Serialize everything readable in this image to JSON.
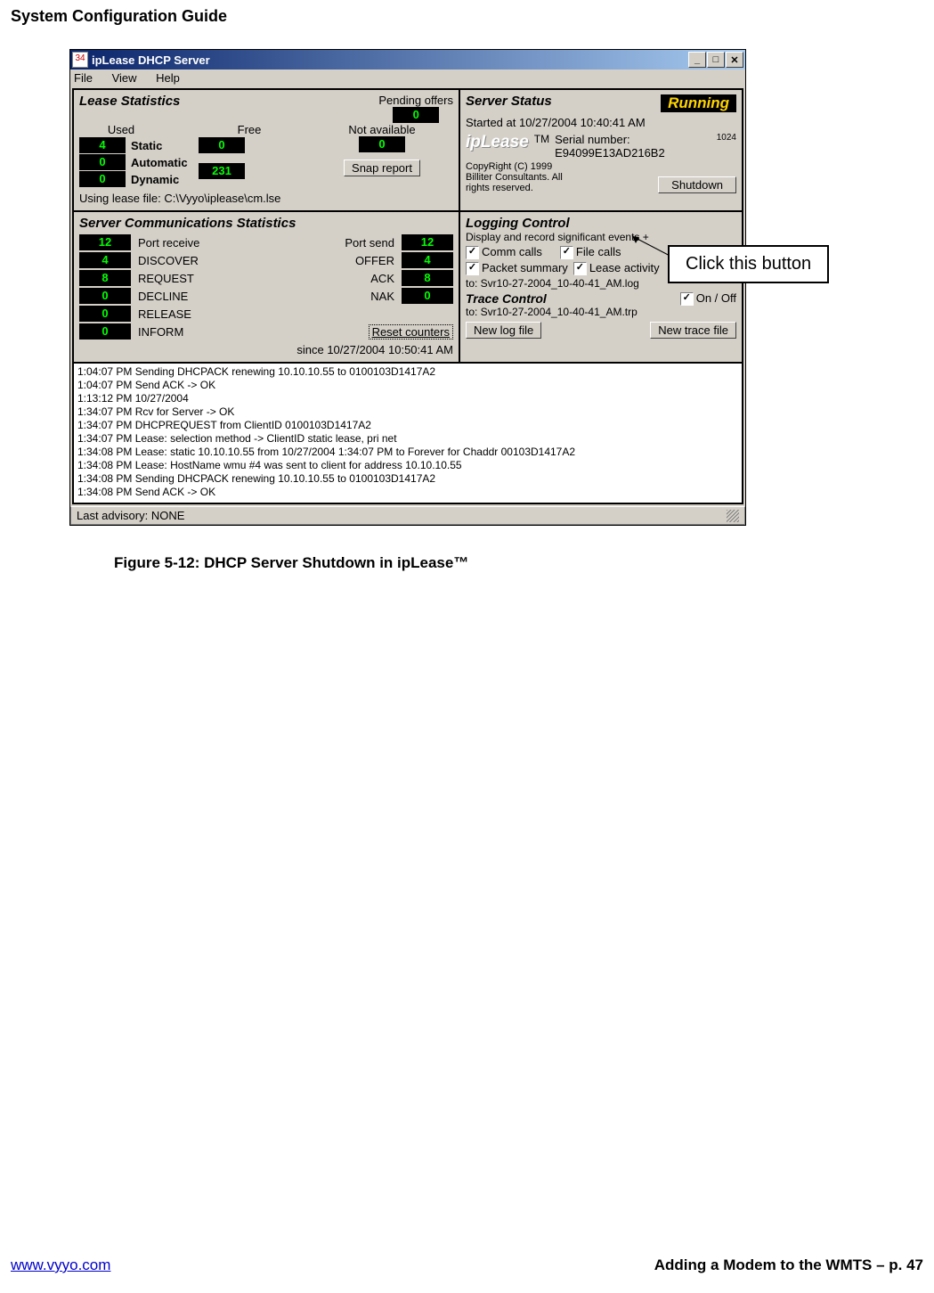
{
  "page": {
    "header": "System Configuration Guide",
    "figure_caption": "Figure 5-12: DHCP Server Shutdown in ipLease™",
    "callout": "Click this button",
    "footer_link": "www.vyyo.com",
    "footer_right": "Adding a Modem to the WMTS – p. 47"
  },
  "window": {
    "title": "ipLease DHCP Server",
    "menu": {
      "file": "File",
      "view": "View",
      "help": "Help"
    }
  },
  "lease_stats": {
    "title": "Lease Statistics",
    "used_label": "Used",
    "free_label": "Free",
    "static_label": "Static",
    "automatic_label": "Automatic",
    "dynamic_label": "Dynamic",
    "pending_label": "Pending offers",
    "not_avail_label": "Not available",
    "snap_report_btn": "Snap report",
    "static_used": "4",
    "static_free": "0",
    "automatic_used": "0",
    "automatic_free": "231",
    "dynamic_used": "0",
    "pending_val": "0",
    "not_avail_val": "0",
    "lease_file_line": "Using lease file: C:\\Vyyo\\iplease\\cm.lse"
  },
  "server_status": {
    "title": "Server Status",
    "running": "Running",
    "started_line": "Started at 10/27/2004 10:40:41 AM",
    "logo": "ipLease",
    "tm": "TM",
    "serial_label": "Serial number:",
    "serial_small": "1024",
    "serial_val": "E94099E13AD216B2",
    "copyright": "CopyRight (C) 1999\nBilliter Consultants. All\nrights reserved.",
    "shutdown_btn": "Shutdown"
  },
  "comm_stats": {
    "title": "Server Communications Statistics",
    "port_receive_label": "Port receive",
    "port_send_label": "Port send",
    "discover_label": "DISCOVER",
    "offer_label": "OFFER",
    "request_label": "REQUEST",
    "ack_label": "ACK",
    "decline_label": "DECLINE",
    "nak_label": "NAK",
    "release_label": "RELEASE",
    "inform_label": "INFORM",
    "port_receive_val": "12",
    "port_send_val": "12",
    "discover_val": "4",
    "offer_val": "4",
    "request_val": "8",
    "ack_val": "8",
    "decline_val": "0",
    "nak_val": "0",
    "release_val": "0",
    "inform_val": "0",
    "reset_btn": "Reset counters",
    "since_line": "since 10/27/2004 10:50:41 AM"
  },
  "logging": {
    "title": "Logging Control",
    "subtitle": "Display and record significant events +",
    "comm_calls": "Comm calls",
    "file_calls": "File calls",
    "packet_summary": "Packet summary",
    "lease_activity": "Lease activity",
    "log_to_line": "to: Svr10-27-2004_10-40-41_AM.log",
    "trace_title": "Trace Control",
    "onoff": "On / Off",
    "trace_to_line": "to: Svr10-27-2004_10-40-41_AM.trp",
    "new_log_btn": "New log file",
    "new_trace_btn": "New trace file"
  },
  "log_lines": [
    "1:04:07 PM Sending DHCPACK renewing 10.10.10.55 to 0100103D1417A2",
    "1:04:07 PM Send ACK -> OK",
    "1:13:12 PM 10/27/2004",
    "1:34:07 PM Rcv for Server -> OK",
    "1:34:07 PM DHCPREQUEST from ClientID 0100103D1417A2",
    "1:34:07 PM Lease: selection method -> ClientID static lease, pri net",
    "1:34:08 PM Lease: static 10.10.10.55 from 10/27/2004 1:34:07 PM to Forever for Chaddr 00103D1417A2",
    "1:34:08 PM Lease: HostName wmu #4 was sent to client for address 10.10.10.55",
    "1:34:08 PM Sending DHCPACK renewing 10.10.10.55 to 0100103D1417A2",
    "1:34:08 PM Send ACK -> OK"
  ],
  "statusbar": {
    "text": "Last advisory: NONE"
  }
}
